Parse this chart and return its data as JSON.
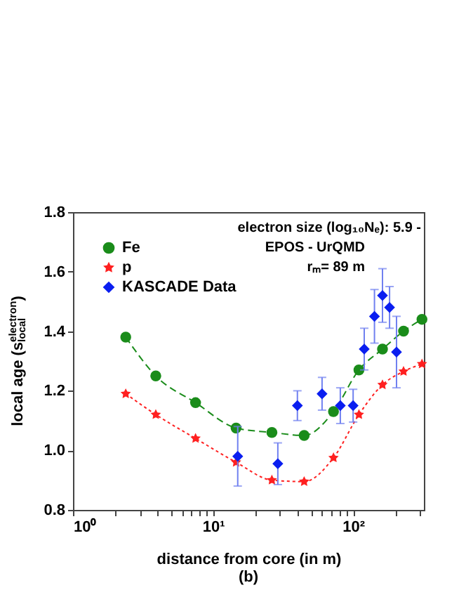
{
  "chart_data": {
    "type": "line",
    "xlabel": "distance from core (in m)",
    "ylabel": "local age (s$^{electron}$$_{local}$)",
    "log": "x",
    "xlim": [
      1,
      320
    ],
    "ylim": [
      0.8,
      1.8
    ],
    "xticks": [
      {
        "value": 1,
        "label": "10⁰"
      },
      {
        "value": 2,
        "label": null
      },
      {
        "value": 3,
        "label": null
      },
      {
        "value": 4,
        "label": null
      },
      {
        "value": 5,
        "label": null
      },
      {
        "value": 6,
        "label": null
      },
      {
        "value": 7,
        "label": null
      },
      {
        "value": 8,
        "label": null
      },
      {
        "value": 9,
        "label": null
      },
      {
        "value": 10,
        "label": "10¹"
      },
      {
        "value": 20,
        "label": null
      },
      {
        "value": 30,
        "label": null
      },
      {
        "value": 40,
        "label": null
      },
      {
        "value": 50,
        "label": null
      },
      {
        "value": 60,
        "label": null
      },
      {
        "value": 70,
        "label": null
      },
      {
        "value": 80,
        "label": null
      },
      {
        "value": 90,
        "label": null
      },
      {
        "value": 100,
        "label": "10²"
      },
      {
        "value": 200,
        "label": null
      },
      {
        "value": 300,
        "label": null
      }
    ],
    "yticks": [
      {
        "value": 0.8,
        "label": "0.8"
      },
      {
        "value": 1.0,
        "label": "1.0"
      },
      {
        "value": 1.2,
        "label": "1.2"
      },
      {
        "value": 1.4,
        "label": "1.4"
      },
      {
        "value": 1.6,
        "label": "1.6"
      },
      {
        "value": 1.8,
        "label": "1.8"
      }
    ],
    "grid": false,
    "legend": "top left",
    "series": [
      {
        "name": "Fe",
        "type": "line",
        "color": "#1a8c1a",
        "marker": "circle",
        "line_style": "dashed",
        "x": [
          2.38,
          3.9,
          7.5,
          14.6,
          26.3,
          44.7,
          72.4,
          110,
          162,
          229,
          310
        ],
        "values": [
          1.38,
          1.25,
          1.16,
          1.075,
          1.06,
          1.05,
          1.13,
          1.27,
          1.34,
          1.4,
          1.44
        ]
      },
      {
        "name": "p",
        "type": "line",
        "color": "#ff2020",
        "marker": "star",
        "line_style": "dotted",
        "x": [
          2.38,
          3.9,
          7.5,
          14.6,
          26.3,
          44.7,
          72.4,
          110,
          162,
          229,
          310
        ],
        "values": [
          1.19,
          1.12,
          1.04,
          0.96,
          0.9,
          0.895,
          0.975,
          1.12,
          1.22,
          1.265,
          1.29
        ]
      },
      {
        "name": "KASCADE Data",
        "type": "scatter",
        "color": "#0a1ef0",
        "marker": "diamond",
        "x": [
          15,
          29,
          40,
          60,
          81,
          100,
          120,
          142,
          162,
          182,
          204
        ],
        "values": [
          0.98,
          0.955,
          1.15,
          1.19,
          1.15,
          1.15,
          1.34,
          1.45,
          1.52,
          1.48,
          1.33
        ],
        "errors": [
          0.1,
          0.07,
          0.05,
          0.055,
          0.06,
          0.055,
          0.07,
          0.09,
          0.09,
          0.07,
          0.12
        ]
      }
    ],
    "annotations": [
      "electron size (log₁₀Nₑ): 5.9 -",
      "EPOS - UrQMD",
      "rₘ= 89 m",
      "(b)"
    ]
  }
}
